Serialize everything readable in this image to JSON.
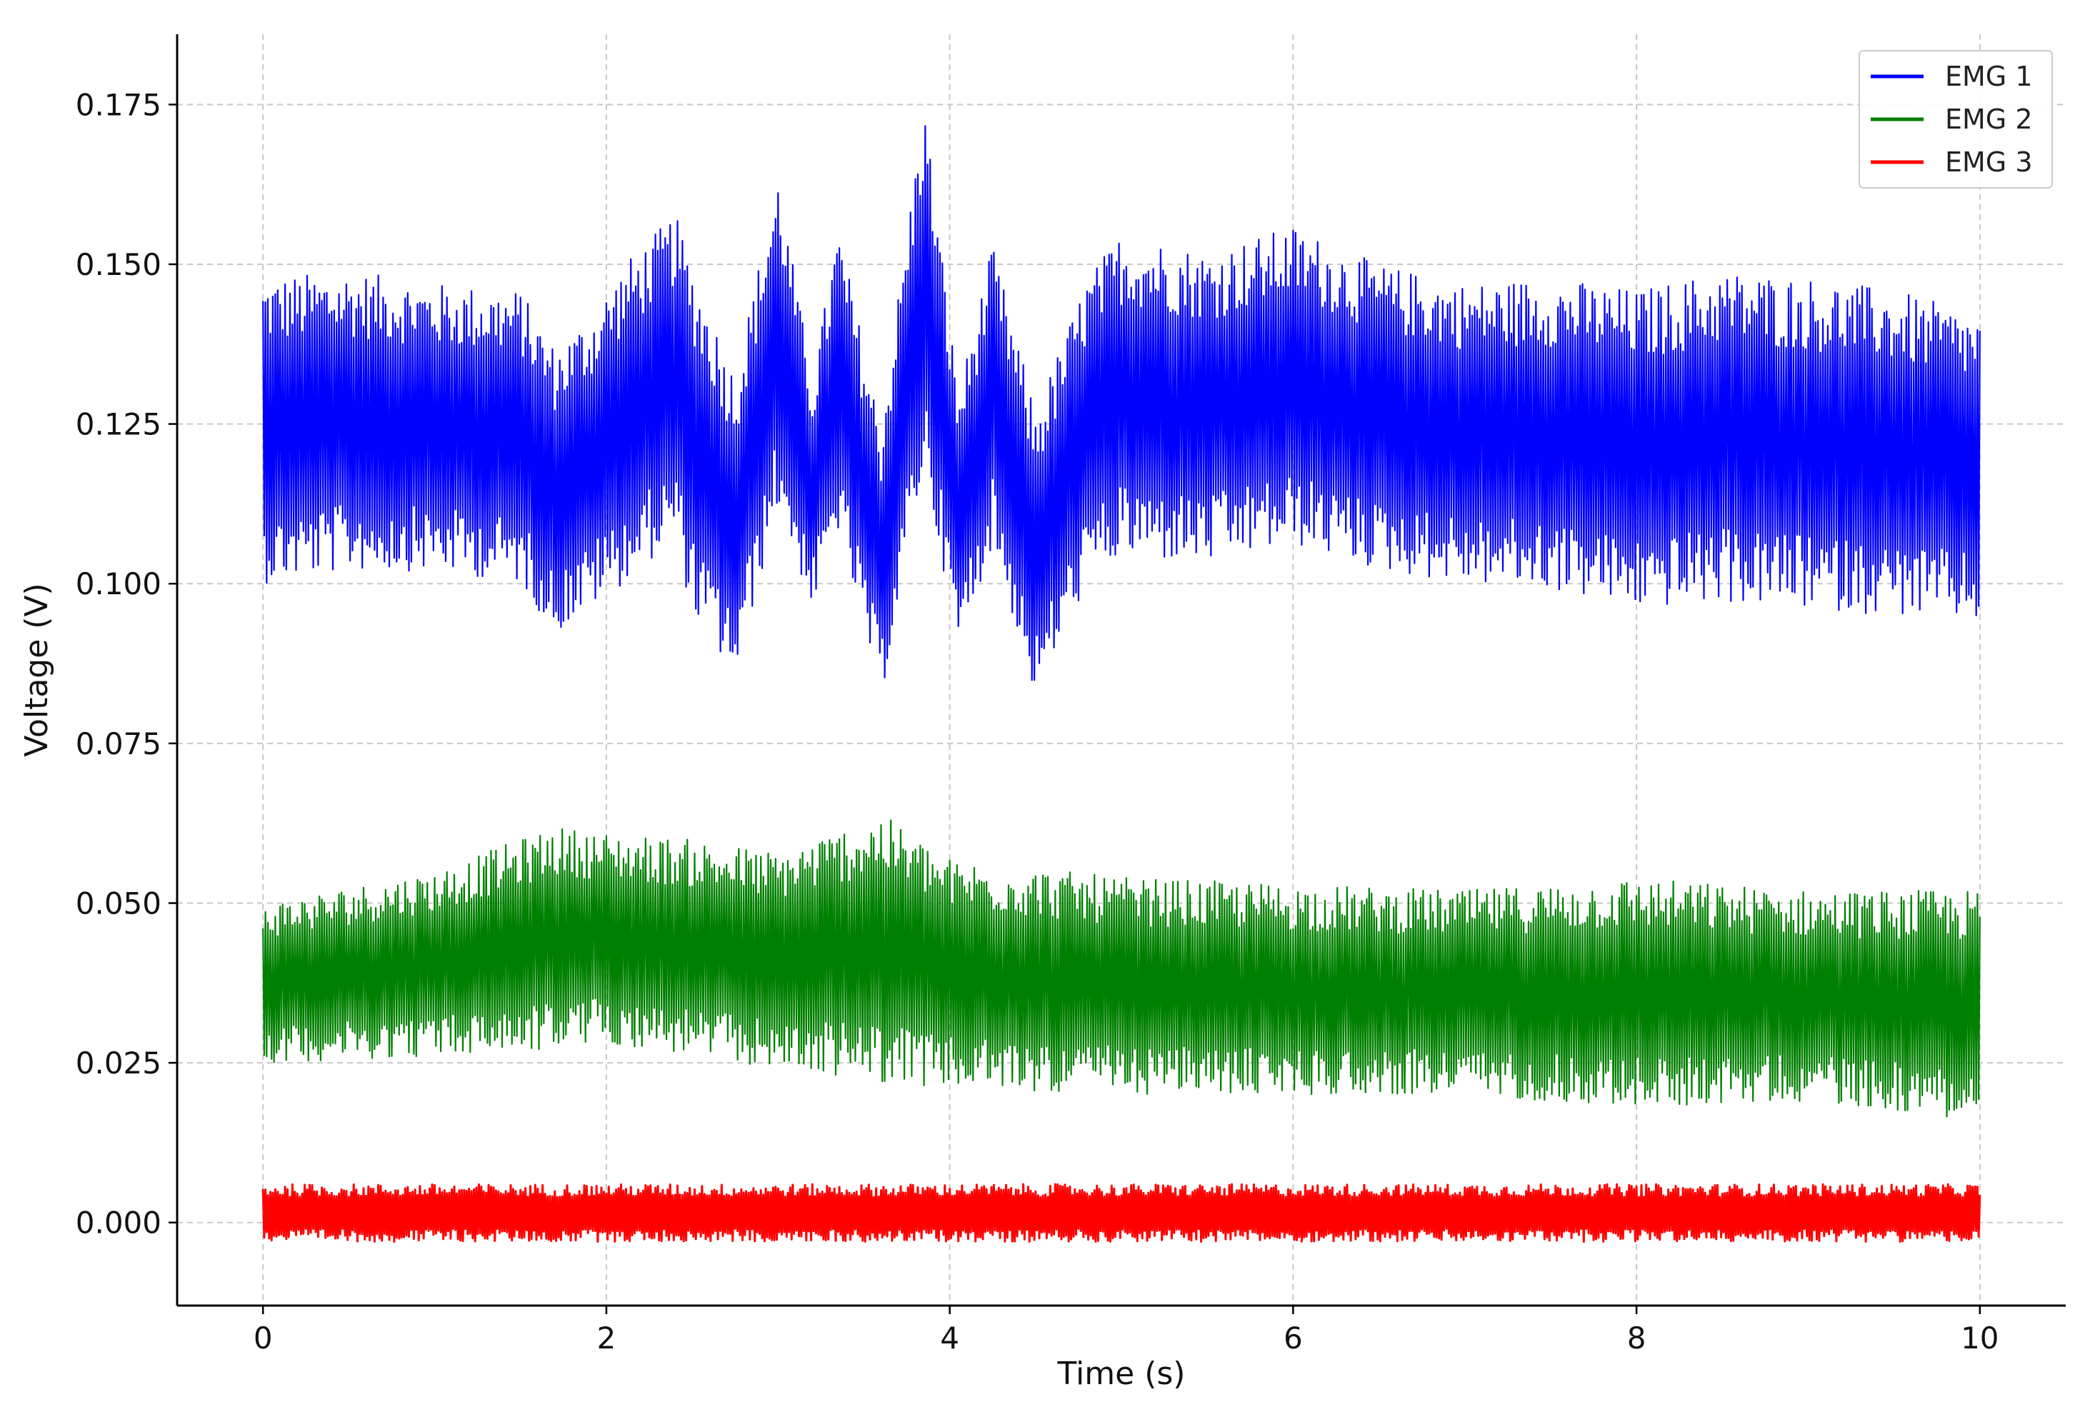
{
  "chart_data": {
    "type": "line",
    "title": "",
    "xlabel": "Time (s)",
    "ylabel": "Voltage (V)",
    "xlim": [
      -0.5,
      10.5
    ],
    "ylim": [
      -0.013,
      0.186
    ],
    "xticks": [
      0,
      2,
      4,
      6,
      8,
      10
    ],
    "xtick_labels": [
      "0",
      "2",
      "4",
      "6",
      "8",
      "10"
    ],
    "yticks": [
      0.0,
      0.025,
      0.05,
      0.075,
      0.1,
      0.125,
      0.15,
      0.175
    ],
    "ytick_labels": [
      "0.000",
      "0.025",
      "0.050",
      "0.075",
      "0.100",
      "0.125",
      "0.150",
      "0.175"
    ],
    "grid": true,
    "legend_position": "top-right",
    "series": [
      {
        "name": "EMG 1",
        "color": "#0000ff",
        "mean": 0.125,
        "envelope": {
          "x": [
            0,
            0.5,
            1.0,
            1.5,
            1.7,
            1.9,
            2.1,
            2.4,
            2.5,
            2.75,
            3.0,
            3.2,
            3.35,
            3.6,
            3.85,
            4.05,
            4.25,
            4.5,
            4.8,
            5.0,
            5.5,
            6.0,
            6.5,
            7.0,
            7.5,
            8.0,
            8.5,
            9.0,
            9.5,
            10.0
          ],
          "upper": [
            0.148,
            0.149,
            0.147,
            0.146,
            0.137,
            0.142,
            0.15,
            0.158,
            0.15,
            0.133,
            0.164,
            0.132,
            0.156,
            0.125,
            0.176,
            0.13,
            0.153,
            0.127,
            0.148,
            0.155,
            0.152,
            0.156,
            0.15,
            0.147,
            0.148,
            0.146,
            0.149,
            0.148,
            0.146,
            0.142
          ],
          "lower": [
            0.1,
            0.102,
            0.102,
            0.1,
            0.092,
            0.096,
            0.1,
            0.107,
            0.095,
            0.085,
            0.112,
            0.096,
            0.108,
            0.082,
            0.118,
            0.09,
            0.106,
            0.082,
            0.1,
            0.104,
            0.103,
            0.106,
            0.102,
            0.1,
            0.099,
            0.096,
            0.097,
            0.096,
            0.095,
            0.094
          ]
        }
      },
      {
        "name": "EMG 2",
        "color": "#008000",
        "mean": 0.04,
        "envelope": {
          "x": [
            0,
            1.0,
            1.7,
            2.0,
            2.5,
            3.0,
            3.6,
            4.0,
            5.0,
            6.0,
            7.0,
            8.0,
            9.0,
            10.0
          ],
          "upper": [
            0.05,
            0.055,
            0.062,
            0.061,
            0.06,
            0.058,
            0.064,
            0.057,
            0.054,
            0.053,
            0.052,
            0.054,
            0.052,
            0.052
          ],
          "lower": [
            0.025,
            0.026,
            0.027,
            0.028,
            0.026,
            0.024,
            0.022,
            0.021,
            0.02,
            0.02,
            0.02,
            0.018,
            0.019,
            0.016
          ]
        }
      },
      {
        "name": "EMG 3",
        "color": "#ff0000",
        "mean": 0.001,
        "envelope": {
          "x": [
            0,
            10.0
          ],
          "upper": [
            0.006,
            0.006
          ],
          "lower": [
            -0.003,
            -0.003
          ]
        }
      }
    ]
  }
}
